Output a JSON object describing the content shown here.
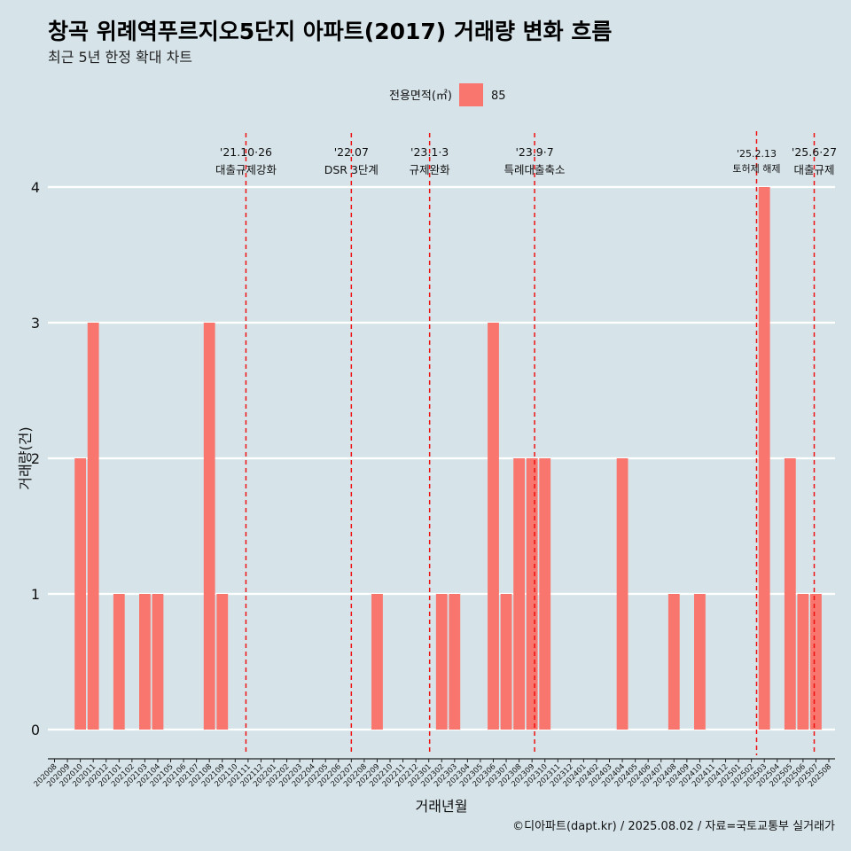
{
  "chart_data": {
    "type": "bar",
    "title": "창곡 위례역푸르지오5단지 아파트(2017) 거래량 변화 흐름",
    "subtitle": "최근 5년 한정 확대 차트",
    "xlabel": "거래년월",
    "ylabel": "거래량(건)",
    "ylim": [
      0,
      4
    ],
    "yticks": [
      "0",
      "1",
      "2",
      "3",
      "4"
    ],
    "legend": {
      "title": "전용면적(㎡)",
      "position": "top",
      "color": "#f8766d"
    },
    "categories": [
      "202008",
      "202009",
      "202010",
      "202011",
      "202012",
      "202101",
      "202102",
      "202103",
      "202104",
      "202105",
      "202106",
      "202107",
      "202108",
      "202109",
      "202110",
      "202111",
      "202112",
      "202201",
      "202202",
      "202203",
      "202204",
      "202205",
      "202206",
      "202207",
      "202208",
      "202209",
      "202210",
      "202211",
      "202212",
      "202301",
      "202302",
      "202303",
      "202304",
      "202305",
      "202306",
      "202307",
      "202308",
      "202309",
      "202310",
      "202311",
      "202312",
      "202401",
      "202402",
      "202403",
      "202404",
      "202405",
      "202406",
      "202407",
      "202408",
      "202409",
      "202410",
      "202411",
      "202412",
      "202501",
      "202502",
      "202503",
      "202504",
      "202505",
      "202506",
      "202507",
      "202508"
    ],
    "series": [
      {
        "name": "85",
        "color": "#f8766d",
        "values": [
          null,
          null,
          2,
          3,
          null,
          1,
          null,
          1,
          1,
          null,
          null,
          null,
          3,
          1,
          null,
          null,
          null,
          null,
          null,
          null,
          null,
          null,
          null,
          null,
          null,
          1,
          null,
          null,
          null,
          null,
          1,
          1,
          null,
          null,
          3,
          1,
          2,
          2,
          2,
          null,
          null,
          null,
          null,
          null,
          2,
          null,
          null,
          null,
          1,
          null,
          1,
          null,
          null,
          null,
          null,
          4,
          null,
          2,
          1,
          1,
          null
        ]
      }
    ],
    "annotations": [
      {
        "date": "2021-10-26",
        "line1": "'21.10·26",
        "line2": "대출규제강화",
        "size": "normal"
      },
      {
        "date": "2022-07",
        "line1": "'22.07",
        "line2": "DSR 3단계",
        "size": "normal"
      },
      {
        "date": "2023-01-03",
        "line1": "'23.1·3",
        "line2": "규제완화",
        "size": "normal"
      },
      {
        "date": "2023-09-07",
        "line1": "'23.9·7",
        "line2": "특례대출축소",
        "size": "normal"
      },
      {
        "date": "2025-02-13",
        "line1": "'25.2.13",
        "line2": "토허제 해제",
        "size": "small"
      },
      {
        "date": "2025-06-27",
        "line1": "'25.6·27",
        "line2": "대출규제",
        "size": "normal"
      }
    ],
    "grid": true,
    "caption": "©디아파트(dapt.kr) / 2025.08.02 / 자료=국토교통부 실거래가"
  }
}
